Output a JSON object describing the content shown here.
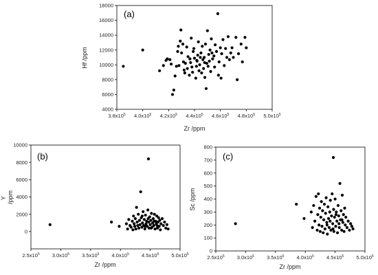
{
  "chart_data": [
    {
      "type": "scatter",
      "panel_label": "(a)",
      "xlabel": "Zr /ppm",
      "ylabel": "Hf /ppm",
      "xlim": [
        380000,
        500000
      ],
      "ylim": [
        4000,
        18000
      ],
      "xticks": [
        380000,
        400000,
        420000,
        440000,
        460000,
        480000,
        500000
      ],
      "xtick_labels": [
        {
          "m": "3.8x10",
          "e": "5"
        },
        {
          "m": "4.0x10",
          "e": "5"
        },
        {
          "m": "4.2x10",
          "e": "5"
        },
        {
          "m": "4.4x10",
          "e": "5"
        },
        {
          "m": "4.6x10",
          "e": "5"
        },
        {
          "m": "4.8x10",
          "e": "5"
        },
        {
          "m": "5.0x10",
          "e": "5"
        }
      ],
      "yticks": [
        4000,
        6000,
        8000,
        10000,
        12000,
        14000,
        16000,
        18000
      ],
      "ytick_labels": [
        "4000",
        "6000",
        "8000",
        "10000",
        "12000",
        "14000",
        "16000",
        "18000"
      ],
      "points": [
        [
          385000,
          9800
        ],
        [
          400000,
          12000
        ],
        [
          413000,
          9200
        ],
        [
          416000,
          9900
        ],
        [
          418000,
          10600
        ],
        [
          419000,
          10800
        ],
        [
          421000,
          10700
        ],
        [
          422000,
          10100
        ],
        [
          423000,
          6000
        ],
        [
          424000,
          6600
        ],
        [
          425000,
          8500
        ],
        [
          426000,
          9800
        ],
        [
          427000,
          11800
        ],
        [
          427500,
          12500
        ],
        [
          428000,
          9900
        ],
        [
          429000,
          13200
        ],
        [
          429500,
          14700
        ],
        [
          430000,
          11600
        ],
        [
          431000,
          12800
        ],
        [
          431500,
          10400
        ],
        [
          432000,
          9300
        ],
        [
          432500,
          8900
        ],
        [
          433000,
          10200
        ],
        [
          434000,
          12400
        ],
        [
          434500,
          9500
        ],
        [
          435000,
          11100
        ],
        [
          436000,
          8600
        ],
        [
          436500,
          10800
        ],
        [
          437000,
          10300
        ],
        [
          437500,
          13600
        ],
        [
          438000,
          9700
        ],
        [
          439000,
          11800
        ],
        [
          439500,
          12200
        ],
        [
          440000,
          10900
        ],
        [
          441000,
          8200
        ],
        [
          441500,
          9800
        ],
        [
          442000,
          10500
        ],
        [
          442500,
          11300
        ],
        [
          443000,
          13100
        ],
        [
          443500,
          9200
        ],
        [
          444000,
          10000
        ],
        [
          445000,
          11600
        ],
        [
          445500,
          8900
        ],
        [
          446000,
          12500
        ],
        [
          446500,
          10700
        ],
        [
          447000,
          9500
        ],
        [
          447500,
          11000
        ],
        [
          448000,
          8300
        ],
        [
          448500,
          12800
        ],
        [
          449000,
          6800
        ],
        [
          449500,
          10200
        ],
        [
          450000,
          14600
        ],
        [
          450500,
          9800
        ],
        [
          451000,
          11400
        ],
        [
          451500,
          10500
        ],
        [
          452000,
          12000
        ],
        [
          452500,
          9100
        ],
        [
          453000,
          13500
        ],
        [
          454000,
          10800
        ],
        [
          455000,
          11200
        ],
        [
          455500,
          9700
        ],
        [
          456000,
          12700
        ],
        [
          457000,
          11800
        ],
        [
          458000,
          16900
        ],
        [
          458500,
          8600
        ],
        [
          459000,
          10400
        ],
        [
          460000,
          12300
        ],
        [
          460500,
          8200
        ],
        [
          461000,
          11500
        ],
        [
          462000,
          13400
        ],
        [
          463000,
          9900
        ],
        [
          464000,
          12200
        ],
        [
          465000,
          11000
        ],
        [
          466000,
          13800
        ],
        [
          467000,
          10700
        ],
        [
          468000,
          11600
        ],
        [
          469000,
          12300
        ],
        [
          470000,
          11000
        ],
        [
          472000,
          13700
        ],
        [
          473000,
          8000
        ],
        [
          474000,
          11500
        ],
        [
          476000,
          12800
        ],
        [
          477000,
          10400
        ],
        [
          479000,
          13700
        ],
        [
          480000,
          12300
        ],
        [
          438500,
          9000
        ],
        [
          441800,
          10600
        ],
        [
          444500,
          11000
        ],
        [
          447800,
          10300
        ],
        [
          453500,
          11600
        ]
      ]
    },
    {
      "type": "scatter",
      "panel_label": "(b)",
      "xlabel": "Zr /ppm",
      "ylabel": "Y\n/ppm",
      "xlim": [
        250000,
        500000
      ],
      "ylim": [
        -2000,
        10000
      ],
      "xticks": [
        250000,
        300000,
        350000,
        400000,
        450000,
        500000
      ],
      "xtick_labels": [
        {
          "m": "2.5x10",
          "e": "5"
        },
        {
          "m": "3.0x10",
          "e": "5"
        },
        {
          "m": "3.5x10",
          "e": "5"
        },
        {
          "m": "4.0x10",
          "e": "5"
        },
        {
          "m": "4.5x10",
          "e": "5"
        },
        {
          "m": "5.0x10",
          "e": "5"
        }
      ],
      "yticks": [
        0,
        2000,
        4000,
        6000,
        8000,
        10000
      ],
      "ytick_labels": [
        "0",
        "2000",
        "4000",
        "6000",
        "8000",
        "10000"
      ],
      "points": [
        [
          282000,
          800
        ],
        [
          385000,
          1100
        ],
        [
          398000,
          600
        ],
        [
          410000,
          900
        ],
        [
          412000,
          300
        ],
        [
          414000,
          1400
        ],
        [
          416000,
          700
        ],
        [
          418000,
          500
        ],
        [
          420000,
          1200
        ],
        [
          421000,
          200
        ],
        [
          422000,
          1800
        ],
        [
          423000,
          900
        ],
        [
          424000,
          600
        ],
        [
          425000,
          1500
        ],
        [
          426000,
          300
        ],
        [
          427000,
          2800
        ],
        [
          428000,
          1100
        ],
        [
          429000,
          700
        ],
        [
          430000,
          2000
        ],
        [
          431000,
          400
        ],
        [
          432000,
          1300
        ],
        [
          433000,
          800
        ],
        [
          434000,
          4600
        ],
        [
          435000,
          1600
        ],
        [
          436000,
          500
        ],
        [
          437000,
          1000
        ],
        [
          438000,
          2300
        ],
        [
          439000,
          700
        ],
        [
          440000,
          1400
        ],
        [
          441000,
          300
        ],
        [
          442000,
          1900
        ],
        [
          443000,
          900
        ],
        [
          444000,
          1200
        ],
        [
          445000,
          600
        ],
        [
          446000,
          2500
        ],
        [
          447000,
          8400
        ],
        [
          447500,
          1100
        ],
        [
          448000,
          400
        ],
        [
          449000,
          1700
        ],
        [
          450000,
          800
        ],
        [
          451000,
          1300
        ],
        [
          452000,
          2100
        ],
        [
          453000,
          500
        ],
        [
          454000,
          1000
        ],
        [
          455000,
          1500
        ],
        [
          456000,
          700
        ],
        [
          457000,
          2000
        ],
        [
          458000,
          300
        ],
        [
          459000,
          1200
        ],
        [
          460000,
          900
        ],
        [
          461000,
          1800
        ],
        [
          462000,
          400
        ],
        [
          463000,
          1100
        ],
        [
          464000,
          1600
        ],
        [
          465000,
          600
        ],
        [
          466000,
          1300
        ],
        [
          467000,
          200
        ],
        [
          468000,
          900
        ],
        [
          470000,
          1500
        ],
        [
          472000,
          700
        ],
        [
          474000,
          1100
        ],
        [
          476000,
          400
        ],
        [
          478000,
          800
        ],
        [
          480000,
          300
        ],
        [
          436500,
          1800
        ],
        [
          441500,
          600
        ],
        [
          446500,
          1500
        ],
        [
          451500,
          400
        ],
        [
          456500,
          1200
        ],
        [
          461500,
          700
        ]
      ]
    },
    {
      "type": "scatter",
      "panel_label": "(c)",
      "xlabel": "Zr /ppm",
      "ylabel": "Sc /ppm",
      "xlim": [
        250000,
        500000
      ],
      "ylim": [
        0,
        800
      ],
      "xticks": [
        250000,
        300000,
        350000,
        400000,
        450000,
        500000
      ],
      "xtick_labels": [
        {
          "m": "2.5x10",
          "e": "5"
        },
        {
          "m": "3.0x10",
          "e": "5"
        },
        {
          "m": "3.5x10",
          "e": "5"
        },
        {
          "m": "4.0x10",
          "e": "5"
        },
        {
          "m": "4.5x10",
          "e": "5"
        },
        {
          "m": "5.0x10",
          "e": "5"
        }
      ],
      "yticks": [
        0,
        100,
        200,
        300,
        400,
        500,
        600,
        700,
        800
      ],
      "ytick_labels": [
        "0",
        "100",
        "200",
        "300",
        "400",
        "500",
        "600",
        "700",
        "800"
      ],
      "points": [
        [
          283000,
          210
        ],
        [
          385000,
          360
        ],
        [
          398000,
          250
        ],
        [
          410000,
          300
        ],
        [
          412000,
          180
        ],
        [
          414000,
          350
        ],
        [
          416000,
          230
        ],
        [
          418000,
          420
        ],
        [
          420000,
          160
        ],
        [
          421000,
          280
        ],
        [
          422000,
          440
        ],
        [
          423000,
          200
        ],
        [
          424000,
          330
        ],
        [
          425000,
          150
        ],
        [
          426000,
          260
        ],
        [
          427000,
          380
        ],
        [
          428000,
          190
        ],
        [
          429000,
          310
        ],
        [
          430000,
          140
        ],
        [
          431000,
          240
        ],
        [
          432000,
          360
        ],
        [
          433000,
          170
        ],
        [
          434000,
          290
        ],
        [
          435000,
          410
        ],
        [
          436000,
          220
        ],
        [
          437000,
          130
        ],
        [
          438000,
          340
        ],
        [
          439000,
          250
        ],
        [
          440000,
          180
        ],
        [
          441000,
          300
        ],
        [
          442000,
          390
        ],
        [
          443000,
          160
        ],
        [
          444000,
          270
        ],
        [
          445000,
          440
        ],
        [
          446000,
          210
        ],
        [
          447000,
          720
        ],
        [
          447500,
          320
        ],
        [
          448000,
          150
        ],
        [
          449000,
          260
        ],
        [
          450000,
          400
        ],
        [
          451000,
          190
        ],
        [
          452000,
          300
        ],
        [
          453000,
          230
        ],
        [
          454000,
          140
        ],
        [
          455000,
          350
        ],
        [
          456000,
          270
        ],
        [
          457000,
          180
        ],
        [
          458000,
          520
        ],
        [
          459000,
          240
        ],
        [
          460000,
          310
        ],
        [
          461000,
          160
        ],
        [
          462000,
          430
        ],
        [
          463000,
          220
        ],
        [
          464000,
          280
        ],
        [
          465000,
          150
        ],
        [
          466000,
          330
        ],
        [
          467000,
          200
        ],
        [
          468000,
          260
        ],
        [
          470000,
          180
        ],
        [
          472000,
          230
        ],
        [
          474000,
          160
        ],
        [
          476000,
          210
        ],
        [
          478000,
          190
        ],
        [
          480000,
          170
        ],
        [
          436500,
          200
        ],
        [
          441500,
          230
        ],
        [
          446500,
          170
        ],
        [
          451500,
          280
        ],
        [
          456500,
          210
        ],
        [
          461500,
          240
        ]
      ]
    }
  ]
}
